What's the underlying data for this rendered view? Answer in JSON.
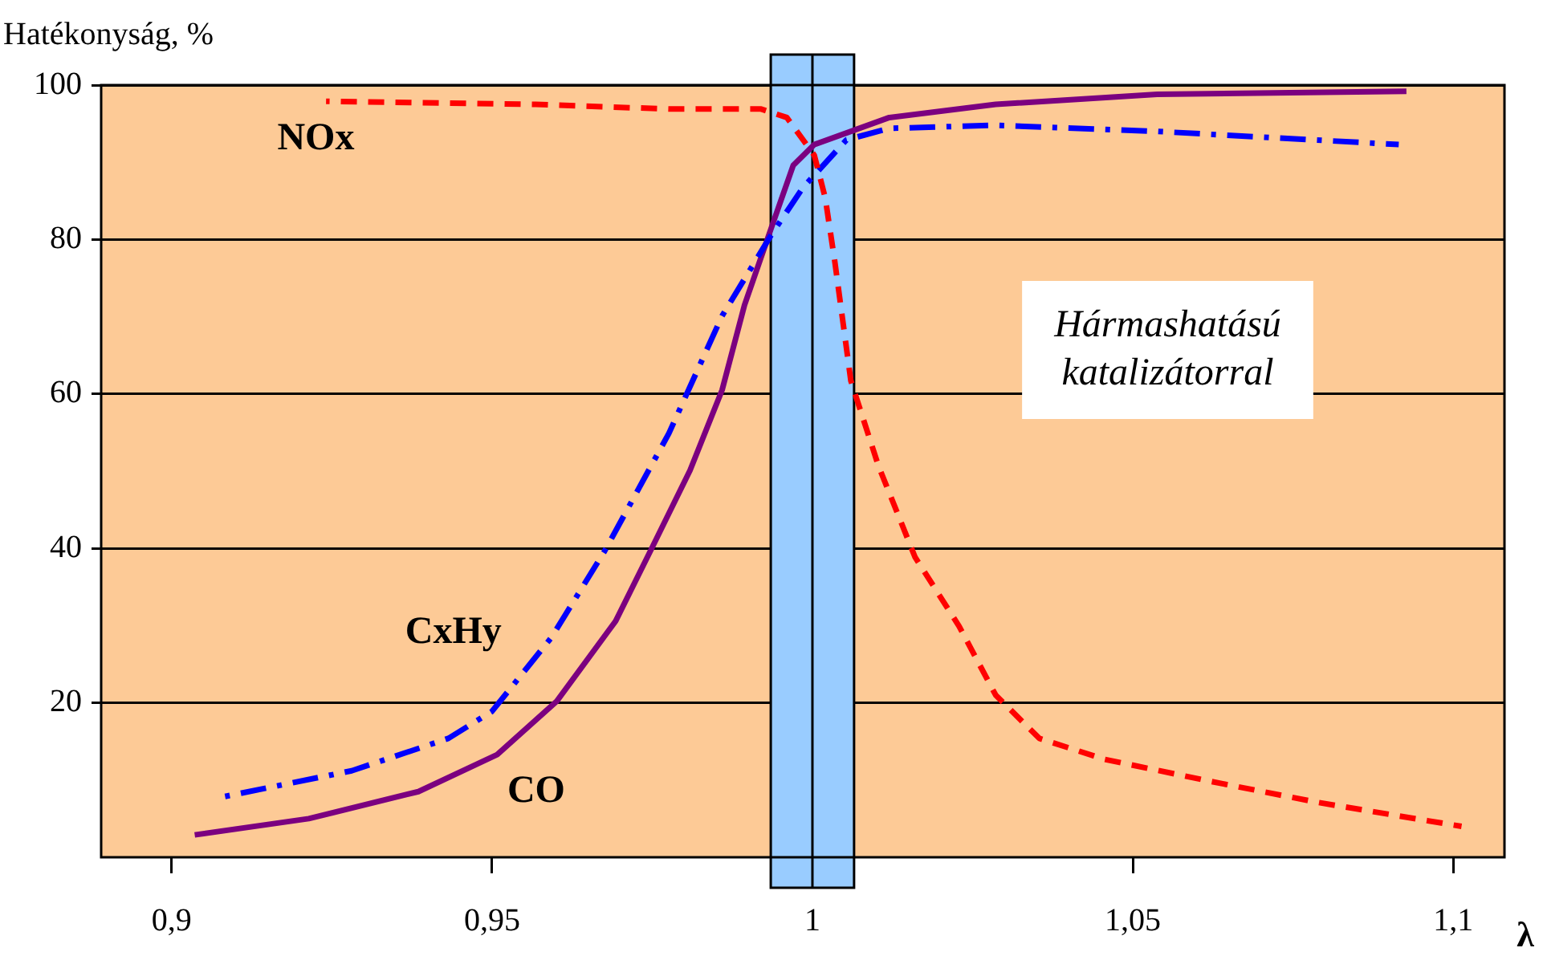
{
  "chart_data": {
    "type": "line",
    "ylabel": "Hatékonyság, %",
    "xlabel": "λ",
    "xlim": [
      0.889,
      1.108
    ],
    "ylim": [
      0,
      100
    ],
    "xticks": [
      {
        "value": 0.9,
        "label": "0,9"
      },
      {
        "value": 0.95,
        "label": "0,95"
      },
      {
        "value": 1,
        "label": "1"
      },
      {
        "value": 1.05,
        "label": "1,05"
      },
      {
        "value": 1.1,
        "label": "1,1"
      }
    ],
    "yticks": [
      20,
      40,
      60,
      80,
      100
    ],
    "grid": "y",
    "legend": false,
    "marker": "none",
    "series": [
      {
        "name": "NOx",
        "color": "#ff0000",
        "line_style": "dashed",
        "x": [
          0.9241,
          0.9568,
          0.9776,
          0.992,
          0.996,
          1.0003,
          1.002,
          1.0035,
          1.006,
          1.0103,
          1.016,
          1.0229,
          1.0286,
          1.0354,
          1.0455,
          1.0623,
          1.0789,
          1.1013
        ],
        "values": [
          97.9,
          97.5,
          96.9,
          96.9,
          95.8,
          90.9,
          85.4,
          77.1,
          61.7,
          50.7,
          38.9,
          29.9,
          21,
          15.4,
          12.7,
          9.8,
          7.1,
          4
        ]
      },
      {
        "name": "CxHy",
        "color": "#0000ff",
        "line_style": "dashdot",
        "x": [
          0.9073,
          0.9281,
          0.9432,
          0.95,
          0.9593,
          0.9676,
          0.9776,
          0.9859,
          0.9935,
          0.9985,
          1.0053,
          1.012,
          1.0286,
          1.0538,
          1.0915
        ],
        "values": [
          7.7,
          11.2,
          15.4,
          18.9,
          28.5,
          39.7,
          54.9,
          70.1,
          80.5,
          86.7,
          92.9,
          94.4,
          94.8,
          94,
          92.3
        ]
      },
      {
        "name": "CO",
        "color": "#7b0080",
        "line_style": "solid",
        "x": [
          0.9036,
          0.9214,
          0.9385,
          0.9508,
          0.9601,
          0.9693,
          0.9751,
          0.9809,
          0.9859,
          0.9894,
          0.9935,
          0.997,
          1.0003,
          1.012,
          1.0286,
          1.0538,
          1.0927
        ],
        "values": [
          2.9,
          5,
          8.5,
          13.3,
          20.2,
          30.6,
          40.3,
          50.1,
          60.5,
          71.5,
          81.3,
          89.6,
          92.3,
          95.8,
          97.5,
          98.8,
          99.2
        ]
      }
    ],
    "bands": [
      {
        "axis": "x",
        "from": 0.9935,
        "to": 1.0065,
        "color": "#99ccff"
      }
    ],
    "ref_lines": [
      {
        "axis": "x",
        "value": 1,
        "color": "#000000"
      }
    ],
    "annotations": [
      "Hármashatású\nkatalizátorral"
    ]
  }
}
